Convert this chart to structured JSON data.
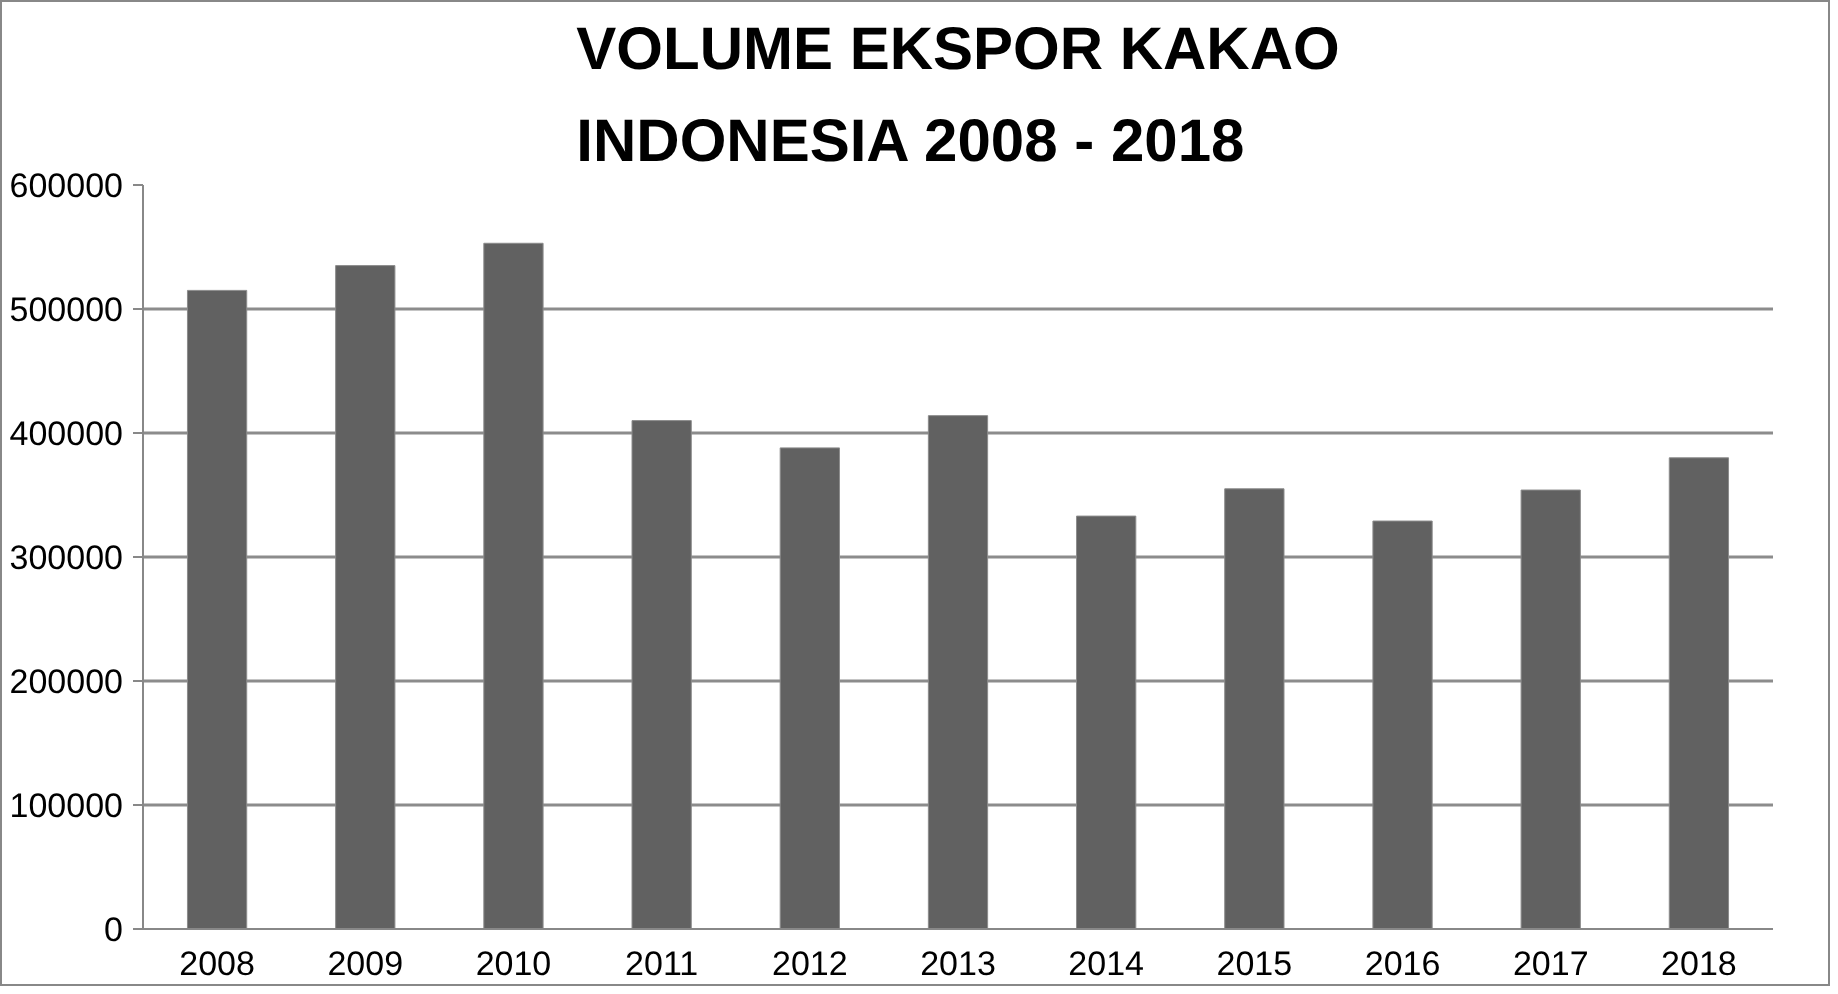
{
  "chart_data": {
    "type": "bar",
    "title": "VOLUME EKSPOR KAKAO\nINDONESIA 2008 - 2018",
    "categories": [
      "2008",
      "2009",
      "2010",
      "2011",
      "2012",
      "2013",
      "2014",
      "2015",
      "2016",
      "2017",
      "2018"
    ],
    "values": [
      515000,
      535000,
      553000,
      410000,
      388000,
      414000,
      333000,
      355000,
      329000,
      354000,
      380000
    ],
    "color": "#616161",
    "ylim": [
      0,
      600000
    ],
    "yticks": [
      0,
      100000,
      200000,
      300000,
      400000,
      500000,
      600000
    ],
    "grid": "y"
  }
}
